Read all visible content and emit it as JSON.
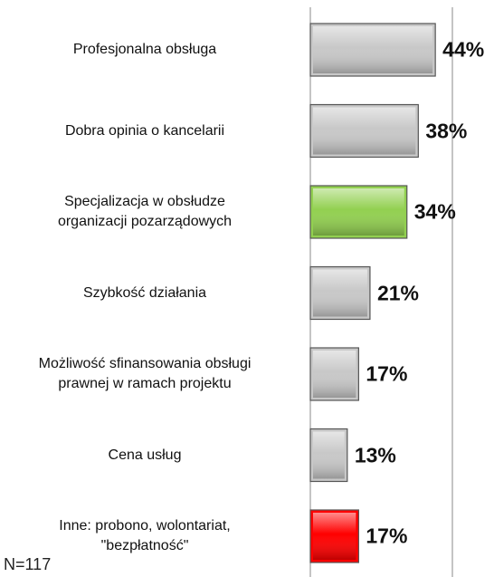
{
  "chart_data": {
    "type": "barh",
    "categories": [
      "Profesjonalna obsługa",
      "Dobra opinia o kancelarii",
      "Specjalizacja w obsłudze\norganizacji pozarządowych",
      "Szybkość działania",
      "Możliwość sfinansowania obsługi\nprawnej w ramach projektu",
      "Cena usług",
      "Inne: probono, wolontariat,\n\"bezpłatność\""
    ],
    "values": [
      44,
      38,
      34,
      21,
      17,
      13,
      17
    ],
    "value_labels": [
      "44%",
      "38%",
      "34%",
      "21%",
      "17%",
      "13%",
      "17%"
    ],
    "colors": [
      "#c8c8c8",
      "#c8c8c8",
      "#92d050",
      "#c8c8c8",
      "#c8c8c8",
      "#c8c8c8",
      "#ff0000"
    ],
    "xlim": [
      0,
      50
    ],
    "annotation": "N=117"
  }
}
